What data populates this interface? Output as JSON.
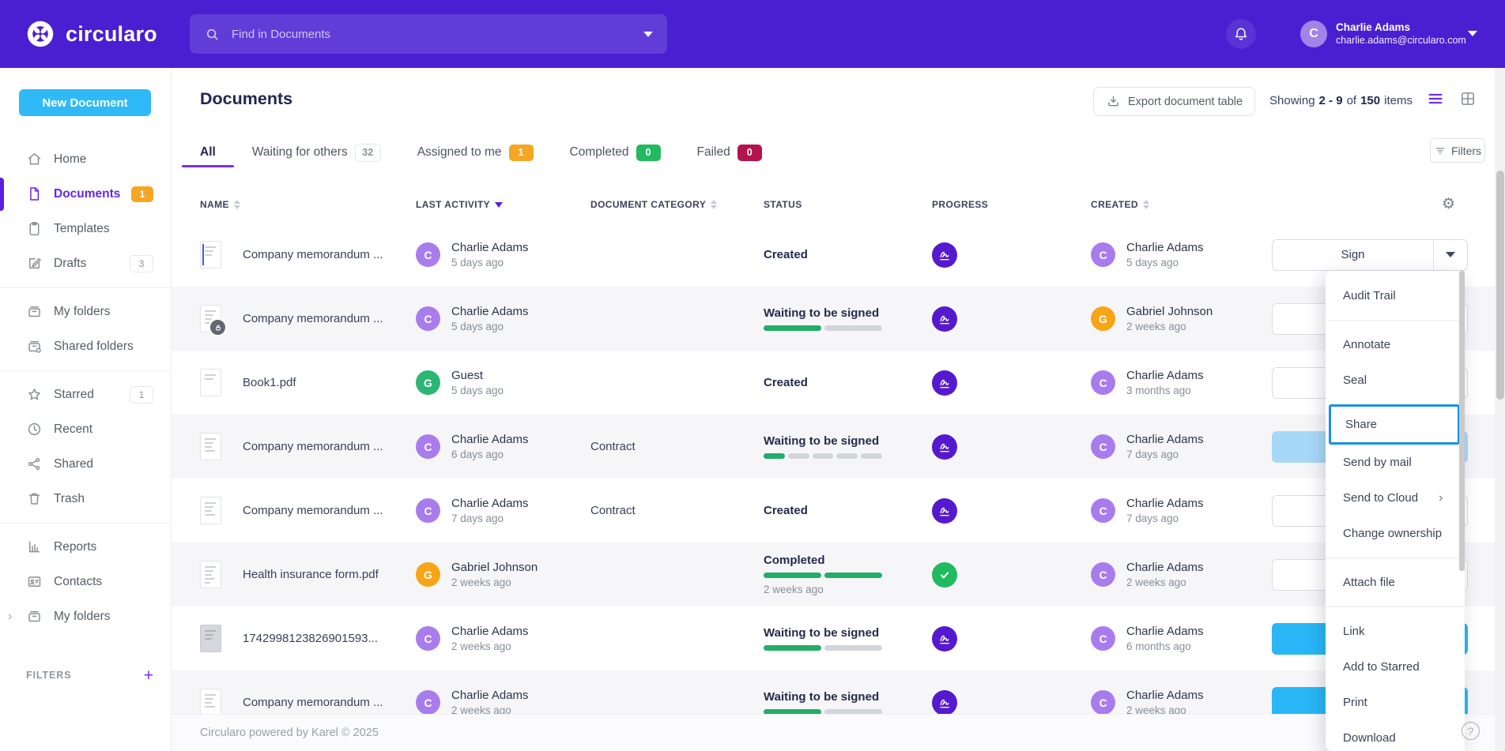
{
  "topbar": {
    "brand": "circularo",
    "search_placeholder": "Find in Documents",
    "user": {
      "name": "Charlie Adams",
      "email": "charlie.adams@circularo.com",
      "initial": "C"
    }
  },
  "sidebar": {
    "new_document_label": "New Document",
    "items": [
      {
        "label": "Home",
        "icon": "home"
      },
      {
        "label": "Documents",
        "icon": "document",
        "active": true,
        "badge": {
          "text": "1",
          "style": "orange"
        }
      },
      {
        "label": "Templates",
        "icon": "template"
      },
      {
        "label": "Drafts",
        "icon": "draft",
        "badge": {
          "text": "3",
          "style": "outline"
        }
      },
      {
        "divider": true
      },
      {
        "label": "My folders",
        "icon": "folder"
      },
      {
        "label": "Shared folders",
        "icon": "shared-folder"
      },
      {
        "divider": true
      },
      {
        "label": "Starred",
        "icon": "star",
        "badge": {
          "text": "1",
          "style": "outline"
        }
      },
      {
        "label": "Recent",
        "icon": "clock"
      },
      {
        "label": "Shared",
        "icon": "share"
      },
      {
        "label": "Trash",
        "icon": "trash"
      },
      {
        "divider": true
      },
      {
        "label": "Reports",
        "icon": "report"
      },
      {
        "label": "Contacts",
        "icon": "contact"
      },
      {
        "label": "My folders",
        "icon": "folder",
        "expand": true
      }
    ],
    "filters_label": "FILTERS"
  },
  "page": {
    "title": "Documents",
    "export_label": "Export document table",
    "showing": {
      "prefix": "Showing",
      "range": "2 - 9",
      "of": "of",
      "total": "150",
      "suffix": "items"
    },
    "filters_label": "Filters"
  },
  "tabs": [
    {
      "label": "All",
      "active": true
    },
    {
      "label": "Waiting for others",
      "badge": {
        "text": "32",
        "style": "outline"
      }
    },
    {
      "label": "Assigned to me",
      "badge": {
        "text": "1",
        "style": "orange"
      }
    },
    {
      "label": "Completed",
      "badge": {
        "text": "0",
        "style": "green"
      }
    },
    {
      "label": "Failed",
      "badge": {
        "text": "0",
        "style": "red"
      }
    }
  ],
  "table": {
    "columns": [
      {
        "label": "Name",
        "sort": "both"
      },
      {
        "label": "Last activity",
        "sort": "desc"
      },
      {
        "label": "Document category",
        "sort": "both"
      },
      {
        "label": "Status",
        "sort": "none"
      },
      {
        "label": "Progress",
        "sort": "none"
      },
      {
        "label": "Created",
        "sort": "both"
      }
    ],
    "rows": [
      {
        "name": "Company memorandum ...",
        "thumb": "blue",
        "locked": false,
        "activity": {
          "initial": "C",
          "color": "purple",
          "name": "Charlie Adams",
          "time": "5 days ago"
        },
        "category": "",
        "status": {
          "label": "Created",
          "segments": null,
          "time": null
        },
        "progress": "sign",
        "created": {
          "initial": "C",
          "color": "purple",
          "name": "Charlie Adams",
          "time": "5 days ago"
        },
        "action": "outline"
      },
      {
        "name": "Company memorandum ...",
        "thumb": "lines",
        "locked": true,
        "activity": {
          "initial": "C",
          "color": "purple",
          "name": "Charlie Adams",
          "time": "5 days ago"
        },
        "category": "",
        "status": {
          "label": "Waiting to be signed",
          "segments": [
            1,
            0
          ],
          "time": null
        },
        "progress": "sign",
        "created": {
          "initial": "G",
          "color": "orange",
          "name": "Gabriel Johnson",
          "time": "2 weeks ago"
        },
        "action": "outline"
      },
      {
        "name": "Book1.pdf",
        "thumb": "plain",
        "locked": false,
        "activity": {
          "initial": "G",
          "color": "green",
          "name": "Guest",
          "time": "5 days ago"
        },
        "category": "",
        "status": {
          "label": "Created",
          "segments": null,
          "time": null
        },
        "progress": "sign",
        "created": {
          "initial": "C",
          "color": "purple",
          "name": "Charlie Adams",
          "time": "3 months ago"
        },
        "action": "outline"
      },
      {
        "name": "Company memorandum ...",
        "thumb": "lines",
        "locked": false,
        "activity": {
          "initial": "C",
          "color": "purple",
          "name": "Charlie Adams",
          "time": "6 days ago"
        },
        "category": "Contract",
        "status": {
          "label": "Waiting to be signed",
          "segments": [
            1,
            0,
            0,
            0,
            0
          ],
          "time": null
        },
        "progress": "sign",
        "created": {
          "initial": "C",
          "color": "purple",
          "name": "Charlie Adams",
          "time": "7 days ago"
        },
        "action": "hover"
      },
      {
        "name": "Company memorandum ...",
        "thumb": "lines",
        "locked": false,
        "activity": {
          "initial": "C",
          "color": "purple",
          "name": "Charlie Adams",
          "time": "7 days ago"
        },
        "category": "Contract",
        "status": {
          "label": "Created",
          "segments": null,
          "time": null
        },
        "progress": "sign",
        "created": {
          "initial": "C",
          "color": "purple",
          "name": "Charlie Adams",
          "time": "7 days ago"
        },
        "action": "outline"
      },
      {
        "name": "Health insurance form.pdf",
        "thumb": "dense",
        "locked": false,
        "activity": {
          "initial": "G",
          "color": "orange",
          "name": "Gabriel Johnson",
          "time": "2 weeks ago"
        },
        "category": "",
        "status": {
          "label": "Completed",
          "segments": [
            1,
            1
          ],
          "time": "2 weeks ago"
        },
        "progress": "check",
        "created": {
          "initial": "C",
          "color": "purple",
          "name": "Charlie Adams",
          "time": "2 weeks ago"
        },
        "action": "outline"
      },
      {
        "name": "1742998123826901593...",
        "thumb": "gray",
        "locked": false,
        "activity": {
          "initial": "C",
          "color": "purple",
          "name": "Charlie Adams",
          "time": "2 weeks ago"
        },
        "category": "",
        "status": {
          "label": "Waiting to be signed",
          "segments": [
            1,
            0
          ],
          "time": null
        },
        "progress": "sign",
        "created": {
          "initial": "C",
          "color": "purple",
          "name": "Charlie Adams",
          "time": "6 months ago"
        },
        "action": "primary"
      },
      {
        "name": "Company memorandum ...",
        "thumb": "lines",
        "locked": false,
        "activity": {
          "initial": "C",
          "color": "purple",
          "name": "Charlie Adams",
          "time": "2 weeks ago"
        },
        "category": "",
        "status": {
          "label": "Waiting to be signed",
          "segments": [
            1,
            0
          ],
          "time": null
        },
        "progress": "sign",
        "created": {
          "initial": "C",
          "color": "purple",
          "name": "Charlie Adams",
          "time": "2 weeks ago"
        },
        "action": "primary"
      }
    ]
  },
  "row_action_label": "Sign",
  "context_menu": {
    "items": [
      {
        "label": "Audit Trail",
        "divider_after": true
      },
      {
        "label": "Annotate"
      },
      {
        "label": "Seal"
      },
      {
        "label": "Share",
        "highlighted": true
      },
      {
        "label": "Send by mail"
      },
      {
        "label": "Send to Cloud",
        "has_submenu": true
      },
      {
        "label": "Change ownership",
        "divider_after": true
      },
      {
        "label": "Attach file",
        "divider_after": true
      },
      {
        "label": "Link"
      },
      {
        "label": "Add to Starred"
      },
      {
        "label": "Print"
      },
      {
        "label": "Download"
      }
    ]
  },
  "footer": {
    "text": "Circularo powered by Karel © 2025",
    "help_label": "?"
  },
  "colors": {
    "topbar_purple": "#4a1fd2",
    "accent_purple": "#6526ea",
    "underline_purple": "#7a2ff0",
    "primary_blue": "#29b6f6",
    "new_document_blue": "#2fb9f6",
    "hover_blue": "#a8d8f8",
    "badge_orange": "#f5a623",
    "badge_green": "#21ba5f",
    "badge_red": "#b5134d",
    "progress_green": "#22ad68",
    "sign_circle_purple": "#5519cf",
    "share_highlight_blue": "#1791e8"
  }
}
